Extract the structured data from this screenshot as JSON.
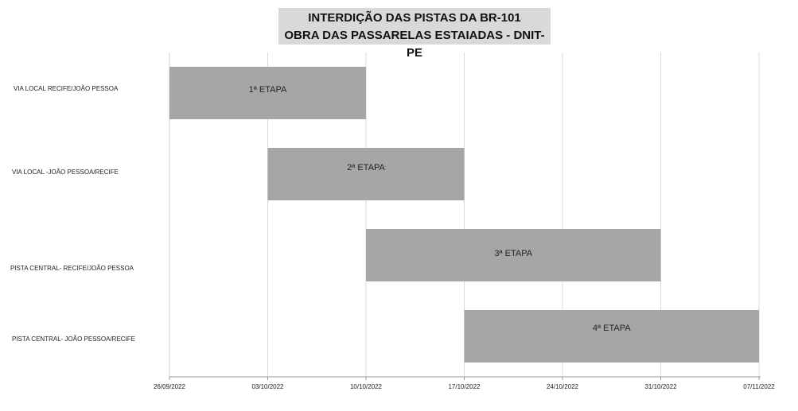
{
  "chart_data": {
    "type": "gantt",
    "title": [
      "INTERDIÇÃO DAS PISTAS DA BR-101",
      "OBRA DAS PASSARELAS ESTAIADAS - DNIT-PE"
    ],
    "x_ticks": [
      "26/09/2022",
      "03/10/2022",
      "10/10/2022",
      "17/10/2022",
      "24/10/2022",
      "31/10/2022",
      "07/11/2022"
    ],
    "x_range_days": [
      0,
      42
    ],
    "tasks": [
      {
        "category": "VIA LOCAL RECIFE/JOÃO PESSOA",
        "label": "1ª ETAPA",
        "start": "26/09/2022",
        "end": "10/10/2022",
        "start_day": 0,
        "end_day": 14
      },
      {
        "category": "VIA LOCAL -JOÃO PESSOA/RECIFE",
        "label": "2ª ETAPA",
        "start": "03/10/2022",
        "end": "17/10/2022",
        "start_day": 7,
        "end_day": 21
      },
      {
        "category": "PISTA CENTRAL- RECIFE/JOÃO PESSOA",
        "label": "3ª ETAPA",
        "start": "10/10/2022",
        "end": "31/10/2022",
        "start_day": 14,
        "end_day": 35
      },
      {
        "category": "PISTA CENTRAL- JOÃO PESSOA/RECIFE",
        "label": "4ª ETAPA",
        "start": "17/10/2022",
        "end": "07/11/2022",
        "start_day": 21,
        "end_day": 42
      }
    ],
    "colors": {
      "bar": "#a6a6a6",
      "grid": "#d9d9d9",
      "title_bg": "#d9d9d9"
    },
    "grid": true
  }
}
